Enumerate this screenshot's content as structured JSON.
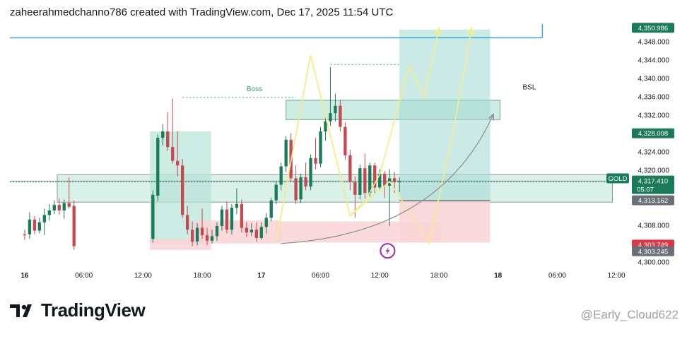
{
  "header": {
    "text": "zaheerahmedchanno786 created with TradingView.com, Dec 17, 2025 11:54 UTC"
  },
  "footer": {
    "brand": "TradingView",
    "watermark": "@Early_Cloud622"
  },
  "colors": {
    "up": "#1b7a57",
    "down": "#c44a52",
    "zone_green": "#b6e3d6",
    "zone_red": "#f9d3d7",
    "projection": "#f5ec8a",
    "current_line": "#2f7d8a"
  },
  "chart_data": {
    "type": "candlestick",
    "symbol_label": "GOLD",
    "y_ticks": [
      "4,348.000",
      "4,344.000",
      "4,340.000",
      "4,336.000",
      "4,332.000",
      "4,328.000",
      "4,324.000",
      "4,320.000",
      "4,308.000",
      "4,300.000"
    ],
    "y_tick_values": [
      4348,
      4344,
      4340,
      4336,
      4332,
      4328,
      4324,
      4320,
      4308,
      4300
    ],
    "x_labels": [
      "16",
      "06:00",
      "12:00",
      "18:00",
      "17",
      "06:00",
      "12:00",
      "18:00",
      "18",
      "06:00",
      "12:00"
    ],
    "x_label_hours": [
      0,
      6,
      12,
      18,
      24,
      30,
      36,
      42,
      48,
      54,
      60
    ],
    "x_label_bold": [
      true,
      false,
      false,
      false,
      true,
      false,
      false,
      false,
      true,
      false,
      false
    ],
    "y_range": [
      4299.5,
      4351.5
    ],
    "x_range_hours": [
      -1.5,
      61.5
    ],
    "price_tags": [
      {
        "value": "4,350.986",
        "price": 4350.986,
        "color": "#1b7a57"
      },
      {
        "value": "4,328.008",
        "price": 4328.008,
        "color": "#1b7a57"
      },
      {
        "value": "4,317.410",
        "sub": "05:07",
        "price": 4317.41,
        "color": "#1b7a57"
      },
      {
        "value": "4,313.162",
        "price": 4313.162,
        "color": "#6b6f78"
      },
      {
        "value": "4,303.749",
        "price": 4303.749,
        "color": "#d93846"
      },
      {
        "value": "4,303.245",
        "price": 4303.245,
        "color": "#6b6f78"
      }
    ],
    "annotations": [
      {
        "text": "Boss",
        "hour": 22.5,
        "price": 4337.2
      },
      {
        "text": "BSL",
        "hour": 50.5,
        "price": 4337.6
      }
    ],
    "candles": [
      {
        "t": 0.0,
        "o": 4306.0,
        "h": 4307.0,
        "l": 4304.8,
        "c": 4305.8
      },
      {
        "t": 0.5,
        "o": 4306.0,
        "h": 4310.8,
        "l": 4305.0,
        "c": 4309.2
      },
      {
        "t": 1.0,
        "o": 4309.2,
        "h": 4310.0,
        "l": 4306.0,
        "c": 4306.8
      },
      {
        "t": 1.5,
        "o": 4306.8,
        "h": 4309.6,
        "l": 4306.2,
        "c": 4308.6
      },
      {
        "t": 2.0,
        "o": 4308.6,
        "h": 4311.6,
        "l": 4305.8,
        "c": 4310.2
      },
      {
        "t": 2.5,
        "o": 4310.2,
        "h": 4312.6,
        "l": 4309.0,
        "c": 4311.2
      },
      {
        "t": 3.0,
        "o": 4311.2,
        "h": 4313.4,
        "l": 4310.4,
        "c": 4312.4
      },
      {
        "t": 3.5,
        "o": 4312.4,
        "h": 4313.8,
        "l": 4310.2,
        "c": 4311.2
      },
      {
        "t": 4.0,
        "o": 4311.2,
        "h": 4313.6,
        "l": 4309.4,
        "c": 4312.8
      },
      {
        "t": 4.5,
        "o": 4312.8,
        "h": 4318.4,
        "l": 4311.6,
        "c": 4312.0
      },
      {
        "t": 5.0,
        "o": 4312.2,
        "h": 4313.4,
        "l": 4302.6,
        "c": 4303.4
      },
      {
        "t": 13.0,
        "o": 4305.0,
        "h": 4315.6,
        "l": 4304.2,
        "c": 4314.6
      },
      {
        "t": 13.5,
        "o": 4314.4,
        "h": 4327.8,
        "l": 4313.2,
        "c": 4327.0
      },
      {
        "t": 14.0,
        "o": 4327.0,
        "h": 4330.0,
        "l": 4325.4,
        "c": 4328.4
      },
      {
        "t": 14.5,
        "o": 4328.4,
        "h": 4332.6,
        "l": 4324.2,
        "c": 4325.0
      },
      {
        "t": 15.0,
        "o": 4325.0,
        "h": 4335.6,
        "l": 4321.4,
        "c": 4322.0
      },
      {
        "t": 15.5,
        "o": 4322.0,
        "h": 4328.4,
        "l": 4318.6,
        "c": 4321.0
      },
      {
        "t": 16.0,
        "o": 4321.0,
        "h": 4322.4,
        "l": 4309.6,
        "c": 4310.2
      },
      {
        "t": 16.5,
        "o": 4310.2,
        "h": 4312.2,
        "l": 4306.0,
        "c": 4307.0
      },
      {
        "t": 17.0,
        "o": 4307.0,
        "h": 4308.8,
        "l": 4303.4,
        "c": 4304.4
      },
      {
        "t": 17.5,
        "o": 4304.4,
        "h": 4308.4,
        "l": 4303.6,
        "c": 4307.4
      },
      {
        "t": 18.0,
        "o": 4307.4,
        "h": 4311.6,
        "l": 4305.0,
        "c": 4305.8
      },
      {
        "t": 18.5,
        "o": 4305.8,
        "h": 4307.4,
        "l": 4303.6,
        "c": 4304.6
      },
      {
        "t": 19.0,
        "o": 4304.6,
        "h": 4307.0,
        "l": 4304.0,
        "c": 4305.6
      },
      {
        "t": 19.5,
        "o": 4305.6,
        "h": 4308.6,
        "l": 4304.6,
        "c": 4307.8
      },
      {
        "t": 20.0,
        "o": 4307.8,
        "h": 4312.2,
        "l": 4306.8,
        "c": 4311.4
      },
      {
        "t": 20.5,
        "o": 4311.4,
        "h": 4313.2,
        "l": 4306.2,
        "c": 4307.0
      },
      {
        "t": 21.0,
        "o": 4307.0,
        "h": 4312.6,
        "l": 4306.0,
        "c": 4311.8
      },
      {
        "t": 21.5,
        "o": 4311.8,
        "h": 4316.0,
        "l": 4310.4,
        "c": 4312.6
      },
      {
        "t": 22.0,
        "o": 4312.6,
        "h": 4313.6,
        "l": 4306.4,
        "c": 4307.4
      },
      {
        "t": 22.5,
        "o": 4307.4,
        "h": 4308.6,
        "l": 4305.4,
        "c": 4306.4
      },
      {
        "t": 23.0,
        "o": 4306.4,
        "h": 4308.4,
        "l": 4305.6,
        "c": 4307.0
      },
      {
        "t": 23.5,
        "o": 4307.0,
        "h": 4308.6,
        "l": 4304.4,
        "c": 4305.2
      },
      {
        "t": 24.0,
        "o": 4305.2,
        "h": 4308.6,
        "l": 4304.8,
        "c": 4307.6
      },
      {
        "t": 24.5,
        "o": 4307.6,
        "h": 4310.6,
        "l": 4306.2,
        "c": 4309.6
      },
      {
        "t": 25.0,
        "o": 4309.6,
        "h": 4314.0,
        "l": 4308.8,
        "c": 4313.4
      },
      {
        "t": 25.5,
        "o": 4313.4,
        "h": 4317.6,
        "l": 4312.6,
        "c": 4316.8
      },
      {
        "t": 26.0,
        "o": 4316.8,
        "h": 4321.6,
        "l": 4315.6,
        "c": 4320.8
      },
      {
        "t": 26.5,
        "o": 4320.8,
        "h": 4327.4,
        "l": 4319.6,
        "c": 4326.6
      },
      {
        "t": 27.0,
        "o": 4326.6,
        "h": 4328.0,
        "l": 4317.4,
        "c": 4318.2
      },
      {
        "t": 27.5,
        "o": 4318.2,
        "h": 4321.0,
        "l": 4312.6,
        "c": 4313.4
      },
      {
        "t": 28.0,
        "o": 4313.6,
        "h": 4319.2,
        "l": 4312.8,
        "c": 4318.4
      },
      {
        "t": 28.5,
        "o": 4318.4,
        "h": 4321.6,
        "l": 4315.6,
        "c": 4316.4
      },
      {
        "t": 29.0,
        "o": 4316.4,
        "h": 4323.4,
        "l": 4315.6,
        "c": 4322.6
      },
      {
        "t": 29.5,
        "o": 4322.6,
        "h": 4327.0,
        "l": 4320.2,
        "c": 4321.4
      },
      {
        "t": 30.0,
        "o": 4321.4,
        "h": 4329.4,
        "l": 4320.6,
        "c": 4328.4
      },
      {
        "t": 30.5,
        "o": 4328.4,
        "h": 4331.6,
        "l": 4326.4,
        "c": 4330.6
      },
      {
        "t": 31.0,
        "o": 4330.6,
        "h": 4342.4,
        "l": 4329.6,
        "c": 4332.4
      },
      {
        "t": 31.5,
        "o": 4332.4,
        "h": 4336.6,
        "l": 4330.6,
        "c": 4334.0
      },
      {
        "t": 32.0,
        "o": 4334.0,
        "h": 4335.2,
        "l": 4328.4,
        "c": 4329.4
      },
      {
        "t": 32.5,
        "o": 4329.4,
        "h": 4330.4,
        "l": 4322.2,
        "c": 4323.2
      },
      {
        "t": 33.0,
        "o": 4323.2,
        "h": 4324.4,
        "l": 4315.6,
        "c": 4317.4
      },
      {
        "t": 33.5,
        "o": 4317.4,
        "h": 4318.6,
        "l": 4309.6,
        "c": 4314.6
      },
      {
        "t": 34.0,
        "o": 4314.6,
        "h": 4321.2,
        "l": 4313.6,
        "c": 4320.4
      },
      {
        "t": 34.5,
        "o": 4320.4,
        "h": 4323.6,
        "l": 4313.8,
        "c": 4315.0
      },
      {
        "t": 35.0,
        "o": 4315.0,
        "h": 4321.6,
        "l": 4314.2,
        "c": 4321.0
      },
      {
        "t": 35.5,
        "o": 4321.0,
        "h": 4321.6,
        "l": 4315.0,
        "c": 4316.2
      },
      {
        "t": 36.0,
        "o": 4316.2,
        "h": 4320.2,
        "l": 4315.4,
        "c": 4319.2
      },
      {
        "t": 36.5,
        "o": 4319.2,
        "h": 4319.8,
        "l": 4314.0,
        "c": 4316.6
      },
      {
        "t": 37.0,
        "o": 4316.6,
        "h": 4320.2,
        "l": 4307.8,
        "c": 4318.2
      },
      {
        "t": 37.5,
        "o": 4318.2,
        "h": 4319.6,
        "l": 4315.0,
        "c": 4317.4
      },
      {
        "t": 38.0,
        "o": 4317.4,
        "h": 4318.4,
        "l": 4315.2,
        "c": 4317.6
      }
    ],
    "zones": [
      {
        "kind": "green",
        "t1": 3.3,
        "t2": 59.6,
        "p1": 4313.0,
        "p2": 4319.0
      },
      {
        "kind": "green",
        "t1": 12.7,
        "t2": 18.9,
        "p1": 4303.8,
        "p2": 4328.4
      },
      {
        "kind": "red",
        "t1": 12.7,
        "t2": 18.9,
        "p1": 4302.6,
        "p2": 4305.0
      },
      {
        "kind": "red",
        "t1": 17.2,
        "t2": 26.0,
        "p1": 4304.0,
        "p2": 4309.0
      },
      {
        "kind": "green",
        "t1": 26.5,
        "t2": 48.2,
        "p1": 4331.0,
        "p2": 4335.2
      },
      {
        "kind": "red",
        "t1": 25.5,
        "t2": 42.2,
        "p1": 4304.2,
        "p2": 4308.8
      },
      {
        "kind": "green_long",
        "t1": 38.0,
        "t2": 47.2,
        "p1": 4313.3,
        "p2": 4350.6
      },
      {
        "kind": "red_long",
        "t1": 38.0,
        "t2": 47.2,
        "p1": 4304.2,
        "p2": 4313.3
      }
    ],
    "levels": [
      {
        "kind": "teal_box_top",
        "t1": -1.5,
        "t2": 52.5,
        "price": 4348.8
      },
      {
        "kind": "gray_dashed",
        "t1": -1.5,
        "t2": 59.6,
        "price": 4317.6
      },
      {
        "kind": "current_dotted",
        "t1": -1.5,
        "t2": 59.6,
        "price": 4317.41
      },
      {
        "kind": "dark_gray",
        "t1": 38.0,
        "t2": 47.2,
        "price": 4313.3
      },
      {
        "kind": "boss_dotted",
        "t1": 16.0,
        "t2": 27.5,
        "price": 4335.8
      },
      {
        "kind": "top_dotted",
        "t1": 31.0,
        "t2": 38.0,
        "price": 4343.0
      }
    ],
    "projection_path": [
      {
        "t": 25.5,
        "p": 4304.6
      },
      {
        "t": 29.0,
        "p": 4345.0
      },
      {
        "t": 33.0,
        "p": 4310.0
      },
      {
        "t": 34.6,
        "p": 4313.6
      },
      {
        "t": 36.0,
        "p": 4319.0
      },
      {
        "t": 39.0,
        "p": 4342.6
      },
      {
        "t": 40.5,
        "p": 4336.0
      },
      {
        "t": 42.0,
        "p": 4350.6
      }
    ],
    "projection_path2": [
      {
        "t": 25.5,
        "p": 4304.6
      },
      {
        "t": 29.0,
        "p": 4345.0
      },
      {
        "t": 33.0,
        "p": 4310.0
      },
      {
        "t": 37.0,
        "p": 4317.5
      },
      {
        "t": 41.0,
        "p": 4304.0
      },
      {
        "t": 43.5,
        "p": 4329.0
      },
      {
        "t": 45.3,
        "p": 4350.6
      }
    ]
  }
}
